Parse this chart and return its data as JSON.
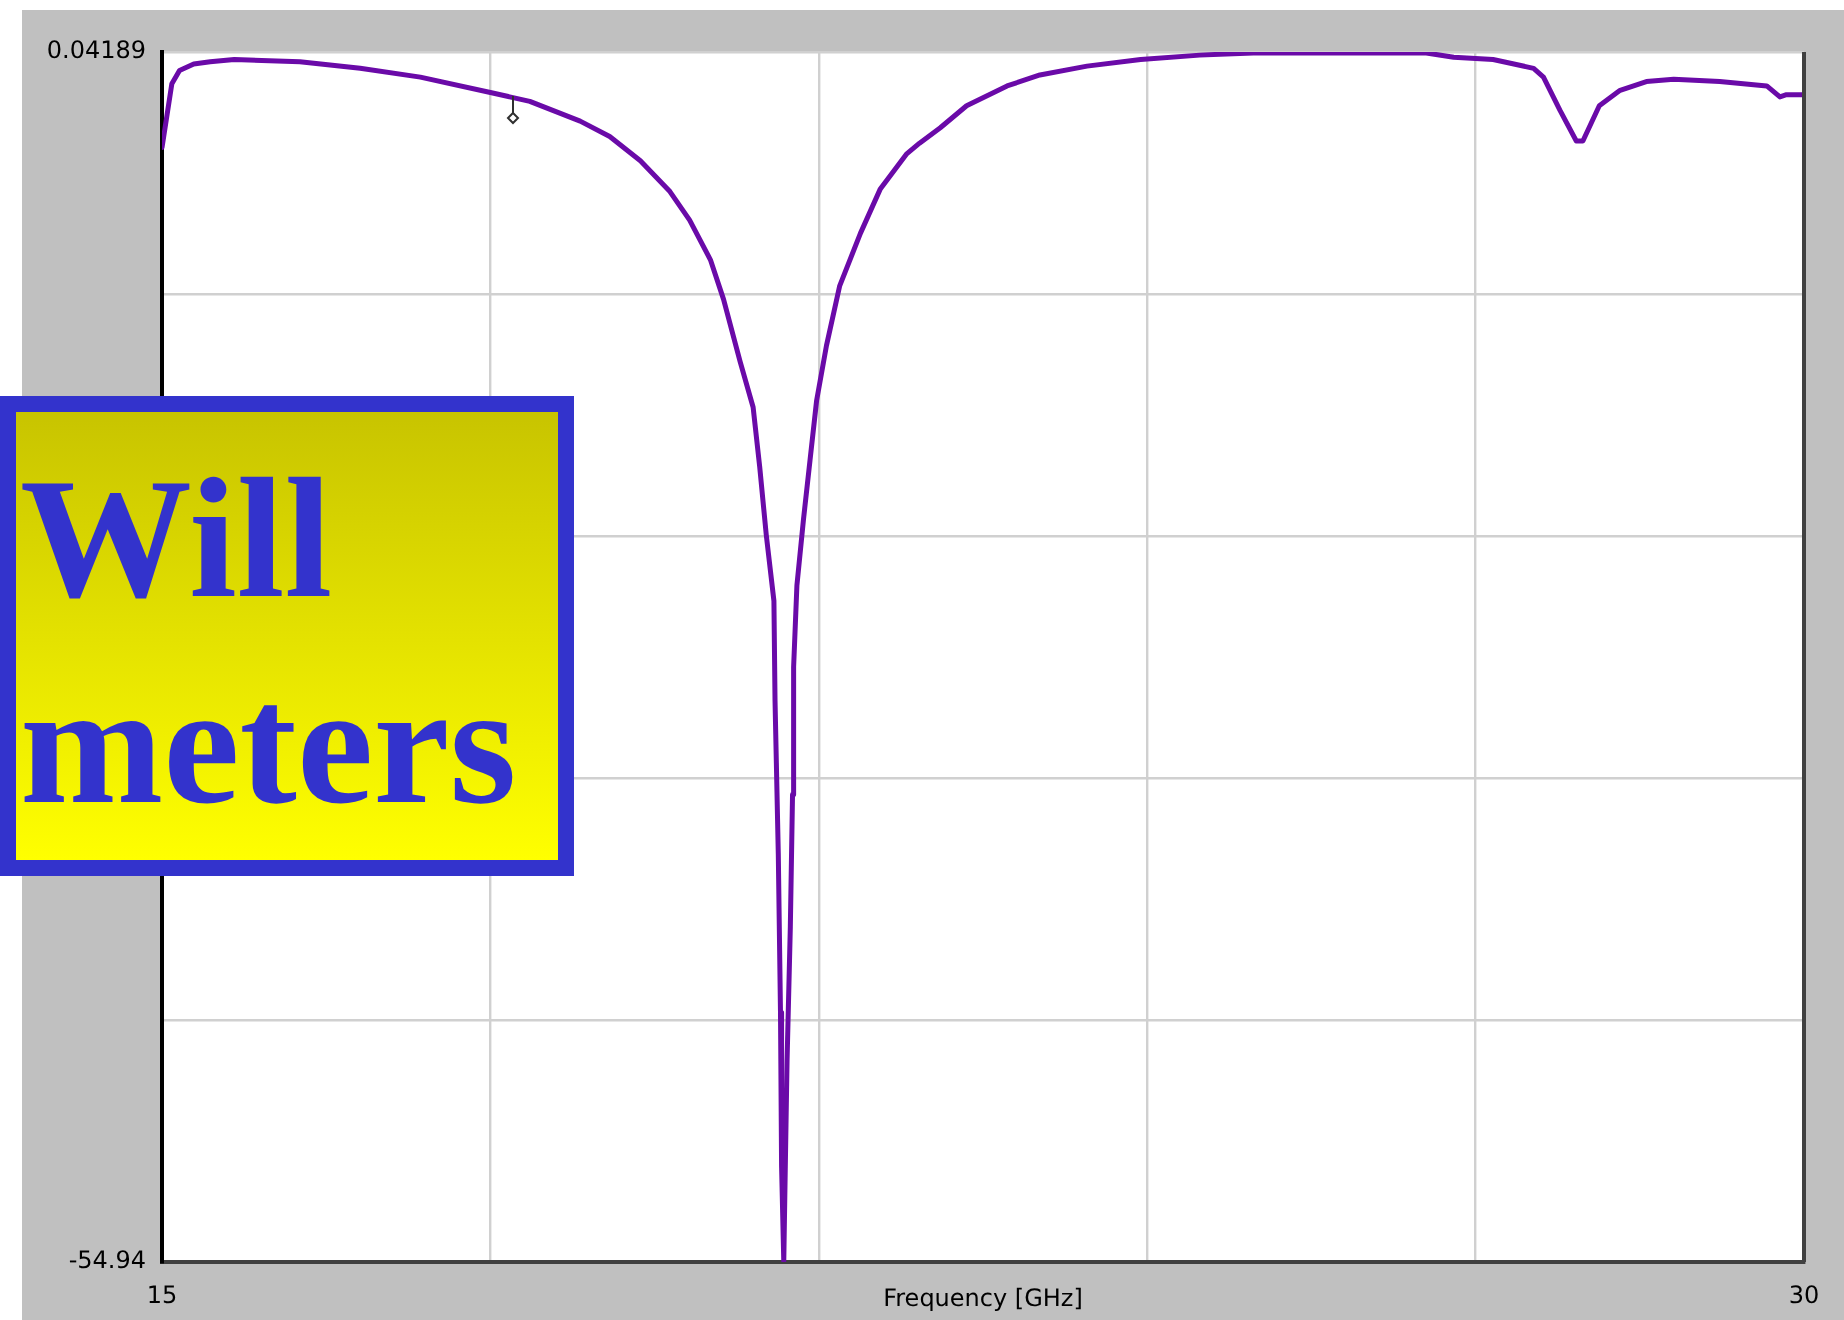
{
  "chart_data": {
    "type": "line",
    "xlabel": "Frequency [GHz]",
    "annotations": [
      "Will",
      "meters"
    ],
    "color": "#6a0aa8",
    "grid": true,
    "xlim": [
      15,
      30
    ],
    "xticks": [
      15,
      {
        "value": 18,
        "label": null
      },
      {
        "value": 21,
        "label": null
      },
      {
        "value": 24,
        "label": null
      },
      {
        "value": 27,
        "label": null
      },
      30
    ],
    "ylim": [
      -54.94,
      0.04189
    ],
    "yticks": [
      -54.94,
      {
        "value": -43.94,
        "label": null
      },
      {
        "value": -32.95,
        "label": null
      },
      {
        "value": -21.95,
        "label": null
      },
      {
        "value": -10.95,
        "label": null
      },
      0.04189
    ],
    "x": [
      15,
      15.09,
      15.16,
      15.29,
      15.44,
      15.66,
      16.26,
      16.81,
      17.36,
      18,
      18.36,
      18.82,
      19.09,
      19.37,
      19.64,
      19.82,
      20.01,
      20.13,
      20.28,
      20.4,
      20.46,
      20.52,
      20.59,
      20.6,
      20.63,
      20.65,
      20.66,
      20.68,
      20.69,
      20.71,
      20.74,
      20.76,
      20.77,
      20.8,
      20.86,
      20.92,
      20.98,
      21.07,
      21.19,
      21.38,
      21.56,
      21.8,
      21.92,
      22.11,
      22.35,
      22.72,
      23.02,
      23.45,
      23.94,
      24.48,
      24.97,
      26.55,
      26.8,
      27.16,
      27.53,
      27.62,
      27.77,
      27.92,
      27.98,
      28.13,
      28.32,
      28.56,
      28.81,
      29.23,
      29.66,
      29.78,
      29.84,
      30
    ],
    "values": [
      -4.3,
      -1.4,
      -0.8,
      -0.5,
      -0.4,
      -0.3,
      -0.4,
      -0.7,
      -1.1,
      -1.8,
      -2.2,
      -3.1,
      -3.8,
      -4.9,
      -6.3,
      -7.6,
      -9.4,
      -11.2,
      -14.0,
      -16.1,
      -18.8,
      -21.9,
      -24.9,
      -29.4,
      -36.4,
      -43.6,
      -50.6,
      -54.9,
      -51.8,
      -45.8,
      -39.7,
      -33.7,
      -27.9,
      -24.2,
      -21.2,
      -18.5,
      -15.8,
      -13.3,
      -10.6,
      -8.2,
      -6.2,
      -4.6,
      -4.1,
      -3.4,
      -2.4,
      -1.5,
      -1.0,
      -0.6,
      -0.3,
      -0.1,
      0,
      0,
      -0.2,
      -0.3,
      -0.7,
      -1.1,
      -2.6,
      -4.0,
      -4.0,
      -2.4,
      -1.7,
      -1.3,
      -1.2,
      -1.3,
      -1.5,
      -2.0,
      -1.9,
      -1.9
    ]
  }
}
